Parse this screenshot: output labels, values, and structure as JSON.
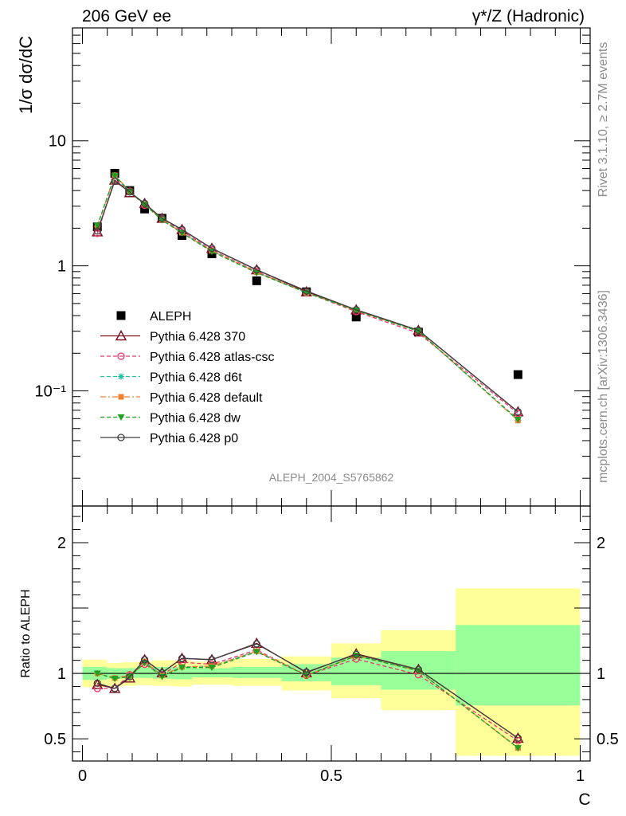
{
  "header": {
    "left": "206 GeV ee",
    "right": "γ*/Z (Hadronic)"
  },
  "side_labels": {
    "rivet": "Rivet 3.1.10, ≥ 2.7M events",
    "mcplots": "mcplots.cern.ch [arXiv:1306.3436]"
  },
  "analysis_id": "ALEPH_2004_S5765862",
  "chart_data": [
    {
      "type": "line",
      "panel": "main",
      "ylabel": "1/σ dσ/dC",
      "yscale": "log",
      "ylim": [
        0.012,
        80
      ],
      "xlim": [
        -0.02,
        1.02
      ],
      "ytick_labels": [
        "10",
        "1",
        "10⁻¹"
      ],
      "ytick_values": [
        10,
        1,
        0.1
      ],
      "legend_position": "middle-left",
      "x": [
        0.03,
        0.065,
        0.095,
        0.125,
        0.16,
        0.2,
        0.26,
        0.35,
        0.45,
        0.55,
        0.675,
        0.875
      ],
      "series": [
        {
          "name": "ALEPH",
          "marker": "square",
          "color": "#000000",
          "values": [
            2.05,
            5.5,
            4.0,
            2.85,
            2.4,
            1.75,
            1.25,
            0.76,
            0.62,
            0.39,
            0.295,
            0.135
          ]
        },
        {
          "name": "Pythia 6.428 370",
          "marker": "triangle-open",
          "color": "#7a0e1e",
          "values": [
            1.87,
            4.85,
            3.85,
            3.15,
            2.4,
            1.95,
            1.38,
            0.93,
            0.62,
            0.445,
            0.305,
            0.068
          ]
        },
        {
          "name": "Pythia 6.428 atlas-csc",
          "marker": "circle-open",
          "color": "#e8386d",
          "values": [
            1.82,
            4.85,
            3.95,
            3.05,
            2.38,
            1.9,
            1.34,
            0.9,
            0.61,
            0.43,
            0.29,
            0.066
          ]
        },
        {
          "name": "Pythia 6.428 d6t",
          "marker": "star",
          "color": "#20c0a0",
          "values": [
            2.08,
            5.3,
            3.95,
            3.1,
            2.35,
            1.84,
            1.32,
            0.89,
            0.61,
            0.44,
            0.3,
            0.058
          ]
        },
        {
          "name": "Pythia 6.428 default",
          "marker": "square-small",
          "color": "#f08030",
          "values": [
            2.08,
            5.3,
            3.95,
            3.1,
            2.35,
            1.84,
            1.32,
            0.89,
            0.61,
            0.44,
            0.3,
            0.058
          ]
        },
        {
          "name": "Pythia 6.428 dw",
          "marker": "triangle-down",
          "color": "#20a020",
          "values": [
            2.1,
            5.25,
            3.9,
            3.08,
            2.32,
            1.83,
            1.3,
            0.88,
            0.61,
            0.44,
            0.3,
            0.059
          ]
        },
        {
          "name": "Pythia 6.428 p0",
          "marker": "circle-open",
          "color": "#404040",
          "values": [
            1.9,
            4.75,
            3.9,
            3.15,
            2.4,
            1.95,
            1.38,
            0.93,
            0.63,
            0.445,
            0.305,
            0.068
          ]
        }
      ]
    },
    {
      "type": "line",
      "panel": "ratio",
      "xlabel": "C",
      "ylabel": "Ratio to ALEPH",
      "ylim": [
        0.33,
        2.28
      ],
      "xlim": [
        -0.02,
        1.02
      ],
      "xtick_labels": [
        "0",
        "0.5",
        "1"
      ],
      "xtick_values": [
        0,
        0.5,
        1
      ],
      "ytick_labels": [
        "2",
        "1",
        "0.5"
      ],
      "ytick_values": [
        2,
        1,
        0.5
      ],
      "bands": {
        "edges": [
          0,
          0.05,
          0.08,
          0.11,
          0.14,
          0.18,
          0.22,
          0.3,
          0.4,
          0.5,
          0.6,
          0.75,
          1.0
        ],
        "inner": [
          [
            0.95,
            1.05
          ],
          [
            0.96,
            1.04
          ],
          [
            0.965,
            1.04
          ],
          [
            0.965,
            1.045
          ],
          [
            0.96,
            1.05
          ],
          [
            0.955,
            1.05
          ],
          [
            0.97,
            1.04
          ],
          [
            0.965,
            1.05
          ],
          [
            0.94,
            1.07
          ],
          [
            0.91,
            1.12
          ],
          [
            0.875,
            1.17
          ],
          [
            0.755,
            1.37
          ]
        ],
        "outer": [
          [
            0.895,
            1.105
          ],
          [
            0.9,
            1.08
          ],
          [
            0.905,
            1.085
          ],
          [
            0.91,
            1.09
          ],
          [
            0.905,
            1.1
          ],
          [
            0.9,
            1.1
          ],
          [
            0.915,
            1.09
          ],
          [
            0.905,
            1.11
          ],
          [
            0.87,
            1.13
          ],
          [
            0.81,
            1.23
          ],
          [
            0.72,
            1.33
          ],
          [
            0.37,
            1.65
          ]
        ]
      },
      "x": [
        0.03,
        0.065,
        0.095,
        0.125,
        0.16,
        0.2,
        0.26,
        0.35,
        0.45,
        0.55,
        0.675,
        0.875
      ],
      "series": [
        {
          "name": "Pythia 6.428 370",
          "marker": "triangle-open",
          "color": "#7a0e1e",
          "values": [
            0.915,
            0.885,
            0.965,
            1.105,
            1.005,
            1.115,
            1.105,
            1.23,
            1.005,
            1.15,
            1.03,
            0.505
          ]
        },
        {
          "name": "Pythia 6.428 atlas-csc",
          "marker": "circle-open",
          "color": "#e8386d",
          "values": [
            0.885,
            0.885,
            0.99,
            1.07,
            0.99,
            1.085,
            1.07,
            1.18,
            0.985,
            1.11,
            0.99,
            0.485
          ]
        },
        {
          "name": "Pythia 6.428 d6t",
          "marker": "star",
          "color": "#20c0a0",
          "values": [
            1.0,
            0.965,
            0.985,
            1.09,
            0.985,
            1.05,
            1.055,
            1.17,
            0.985,
            1.135,
            1.02,
            0.43
          ]
        },
        {
          "name": "Pythia 6.428 default",
          "marker": "square-small",
          "color": "#f08030",
          "values": [
            1.0,
            0.965,
            0.985,
            1.09,
            0.985,
            1.05,
            1.055,
            1.17,
            0.985,
            1.135,
            1.02,
            0.43
          ]
        },
        {
          "name": "Pythia 6.428 dw",
          "marker": "triangle-down",
          "color": "#20a020",
          "values": [
            1.0,
            0.96,
            0.975,
            1.08,
            0.975,
            1.045,
            1.045,
            1.165,
            0.985,
            1.135,
            1.02,
            0.43
          ]
        },
        {
          "name": "Pythia 6.428 p0",
          "marker": "circle-open",
          "color": "#404040",
          "values": [
            0.925,
            0.885,
            0.975,
            1.105,
            1.005,
            1.115,
            1.105,
            1.225,
            1.01,
            1.145,
            1.03,
            0.505
          ]
        }
      ]
    }
  ]
}
